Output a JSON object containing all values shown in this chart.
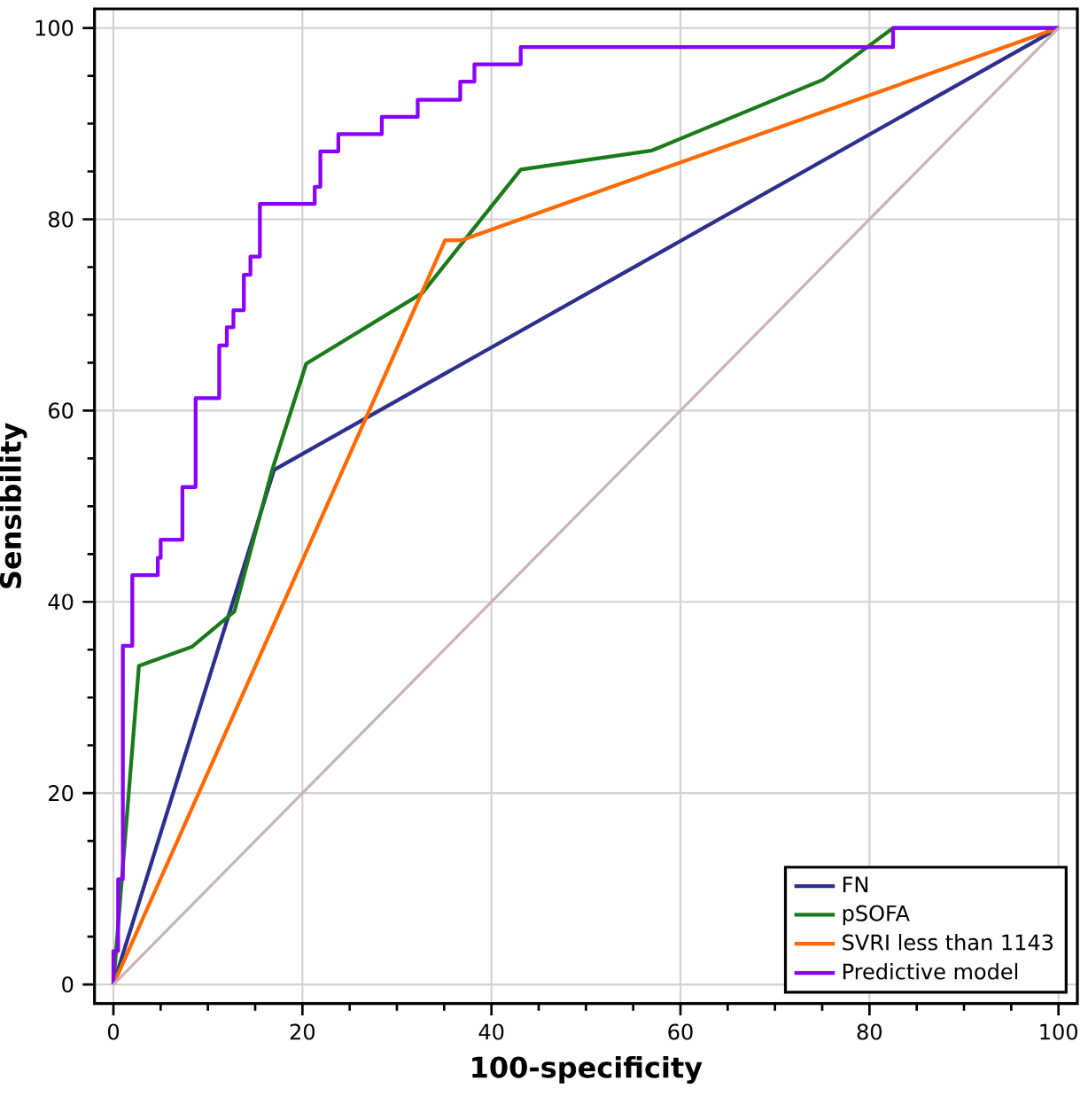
{
  "chart_data": {
    "type": "line",
    "xlabel": "100-specificity",
    "ylabel": "Sensibility",
    "xlim": [
      -2,
      102
    ],
    "ylim": [
      -2,
      102
    ],
    "xticks": [
      0,
      20,
      40,
      60,
      80,
      100
    ],
    "yticks": [
      0,
      20,
      40,
      60,
      80,
      100
    ],
    "grid": true,
    "legend": "bottom right",
    "series": [
      {
        "name": "FN",
        "color": "#2e2e8c",
        "x": [
          0,
          17.0,
          100
        ],
        "values": [
          0,
          53.8,
          100
        ]
      },
      {
        "name": "pSOFA",
        "color": "#1a7a1a",
        "x": [
          0,
          2.7,
          8.3,
          12.8,
          16.8,
          20.4,
          32.7,
          43.1,
          57.0,
          75.1,
          82.5,
          100
        ],
        "values": [
          0,
          33.3,
          35.3,
          39.0,
          53.8,
          64.9,
          72.3,
          85.2,
          87.2,
          94.6,
          100,
          100
        ]
      },
      {
        "name": "SVRI less than 1143",
        "color": "#ff6a00",
        "x": [
          0,
          35.1,
          36.8,
          100
        ],
        "values": [
          0,
          77.8,
          77.8,
          100
        ]
      },
      {
        "name": "Predictive model",
        "color": "#8a00ff",
        "x": [
          0,
          0,
          0.5,
          0.5,
          1.0,
          1.0,
          2.0,
          2.0,
          4.7,
          4.7,
          5.0,
          5.0,
          7.3,
          7.3,
          8.7,
          8.7,
          11.2,
          11.2,
          12.0,
          12.0,
          12.7,
          12.7,
          13.8,
          13.8,
          14.5,
          14.5,
          15.5,
          15.5,
          21.3,
          21.3,
          21.9,
          21.9,
          23.8,
          23.8,
          28.4,
          28.4,
          32.2,
          32.2,
          36.7,
          36.7,
          38.2,
          38.2,
          43.1,
          43.1,
          82.5,
          82.5,
          100
        ],
        "values": [
          0,
          3.5,
          3.5,
          11,
          11,
          35.4,
          35.4,
          42.8,
          42.8,
          44.6,
          44.6,
          46.5,
          46.5,
          52,
          52,
          61.3,
          61.3,
          66.8,
          66.8,
          68.7,
          68.7,
          70.5,
          70.5,
          74.2,
          74.2,
          76.1,
          76.1,
          81.6,
          81.6,
          83.4,
          83.4,
          87.1,
          87.1,
          88.9,
          88.9,
          90.7,
          90.7,
          92.5,
          92.5,
          94.4,
          94.4,
          96.2,
          96.2,
          98,
          98,
          100,
          100
        ]
      },
      {
        "color": "#c8b4b4",
        "x": [
          0,
          100
        ],
        "values": [
          0,
          100
        ]
      }
    ]
  }
}
